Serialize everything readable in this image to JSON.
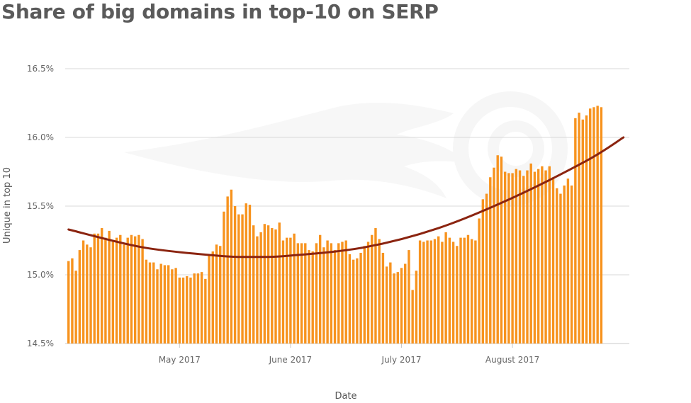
{
  "chart_data": {
    "type": "bar",
    "title": "Share of big domains in top-10 on SERP",
    "xlabel": "Date",
    "ylabel": "Unique in top 10",
    "ylim": [
      14.5,
      16.5
    ],
    "yticks": [
      "14.5%",
      "15.0%",
      "15.5%",
      "16.0%",
      "16.5%"
    ],
    "ytick_values": [
      14.5,
      15.0,
      15.5,
      16.0,
      16.5
    ],
    "xticks": [
      {
        "label": "May 2017",
        "index": 30
      },
      {
        "label": "June 2017",
        "index": 60
      },
      {
        "label": "July 2017",
        "index": 90
      },
      {
        "label": "August 2017",
        "index": 120
      }
    ],
    "grid": true,
    "bar_color": "#f7931e",
    "trend_color": "#8b2410",
    "series": [
      {
        "type": "bar",
        "values": [
          15.1,
          15.12,
          15.03,
          15.18,
          15.25,
          15.22,
          15.2,
          15.3,
          15.3,
          15.34,
          15.27,
          15.32,
          15.24,
          15.27,
          15.29,
          15.22,
          15.27,
          15.29,
          15.28,
          15.29,
          15.26,
          15.11,
          15.09,
          15.09,
          15.04,
          15.08,
          15.07,
          15.07,
          15.04,
          15.05,
          14.98,
          14.98,
          14.99,
          14.98,
          15.01,
          15.01,
          15.02,
          14.97,
          15.15,
          15.17,
          15.22,
          15.21,
          15.46,
          15.57,
          15.62,
          15.5,
          15.44,
          15.44,
          15.52,
          15.51,
          15.36,
          15.28,
          15.31,
          15.37,
          15.36,
          15.34,
          15.33,
          15.38,
          15.25,
          15.27,
          15.27,
          15.3,
          15.23,
          15.23,
          15.23,
          15.18,
          15.17,
          15.23,
          15.29,
          15.2,
          15.25,
          15.23,
          15.18,
          15.23,
          15.24,
          15.25,
          15.15,
          15.11,
          15.12,
          15.16,
          15.21,
          15.24,
          15.29,
          15.34,
          15.26,
          15.16,
          15.06,
          15.09,
          15.01,
          15.02,
          15.05,
          15.08,
          15.18,
          14.89,
          15.03,
          15.25,
          15.24,
          15.25,
          15.25,
          15.26,
          15.28,
          15.24,
          15.31,
          15.27,
          15.24,
          15.21,
          15.27,
          15.27,
          15.29,
          15.26,
          15.25,
          15.41,
          15.55,
          15.59,
          15.71,
          15.78,
          15.87,
          15.86,
          15.75,
          15.74,
          15.74,
          15.77,
          15.76,
          15.72,
          15.76,
          15.81,
          15.75,
          15.77,
          15.79,
          15.76,
          15.79,
          15.71,
          15.63,
          15.59,
          15.65,
          15.7,
          15.65,
          16.14,
          16.18,
          16.13,
          16.16,
          16.21,
          16.22,
          16.23,
          16.22
        ]
      },
      {
        "type": "line",
        "x": [
          0,
          20,
          40,
          50,
          60,
          80,
          100,
          120,
          140,
          150
        ],
        "values": [
          15.33,
          15.2,
          15.14,
          15.13,
          15.14,
          15.2,
          15.34,
          15.56,
          15.83,
          16.0
        ]
      }
    ]
  }
}
